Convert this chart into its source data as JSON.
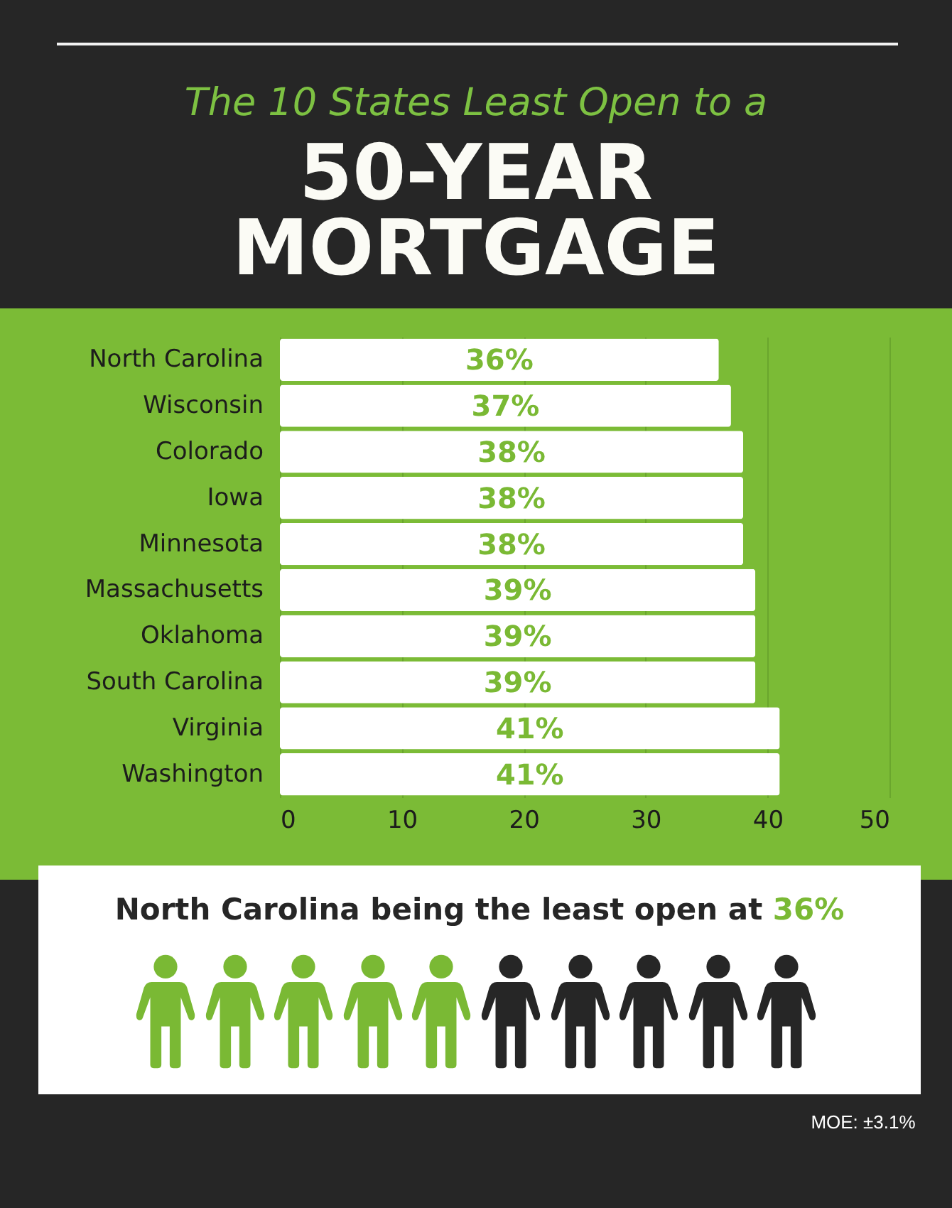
{
  "chart_data": {
    "type": "bar",
    "orientation": "horizontal",
    "title": "The 10 States Least Open to a",
    "subtitle": "50-YEAR MORTGAGE",
    "categories": [
      "North Carolina",
      "Wisconsin",
      "Colorado",
      "Iowa",
      "Minnesota",
      "Massachusetts",
      "Oklahoma",
      "South Carolina",
      "Virginia",
      "Washington"
    ],
    "values": [
      36,
      37,
      38,
      38,
      38,
      39,
      39,
      39,
      41,
      41
    ],
    "value_labels": [
      "36%",
      "37%",
      "38%",
      "38%",
      "38%",
      "39%",
      "39%",
      "39%",
      "41%",
      "41%"
    ],
    "color": "#ffffff",
    "xlim": [
      0,
      50
    ],
    "xticks": [
      0,
      10,
      20,
      30,
      40,
      50
    ],
    "grid": "x",
    "annotations": [
      "North Carolina being the least open at 36%",
      "MOE: ±3.1%"
    ]
  }
}
